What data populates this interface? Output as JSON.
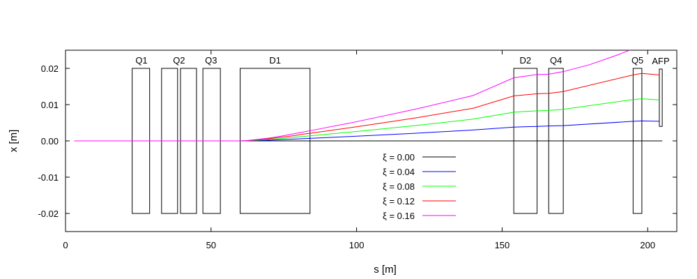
{
  "chart_data": {
    "type": "line",
    "xlabel": "s [m]",
    "ylabel": "x [m]",
    "xlim": [
      0,
      210
    ],
    "ylim": [
      -0.025,
      0.025
    ],
    "xticks": [
      0,
      50,
      100,
      150,
      200
    ],
    "xtick_labels": [
      "0",
      "50",
      "100",
      "150",
      "200"
    ],
    "yticks": [
      -0.02,
      -0.01,
      0.0,
      0.01,
      0.02
    ],
    "ytick_labels": [
      "-0.02",
      "-0.01",
      "0.00",
      "0.01",
      "0.02"
    ],
    "grid": false,
    "legend_position": "bottom-center",
    "elements": [
      {
        "name": "Q1",
        "s_start": 22.9,
        "s_end": 28.9,
        "x_min": -0.02,
        "x_max": 0.02,
        "label_s": 26.1
      },
      {
        "name": "",
        "s_start": 33.0,
        "s_end": 38.5,
        "x_min": -0.02,
        "x_max": 0.02,
        "label_s": 35.7
      },
      {
        "name": "Q2",
        "s_start": 39.5,
        "s_end": 45.0,
        "x_min": -0.02,
        "x_max": 0.02,
        "label_s": 39.0
      },
      {
        "name": "Q3",
        "s_start": 47.2,
        "s_end": 53.2,
        "x_min": -0.02,
        "x_max": 0.02,
        "label_s": 50.0
      },
      {
        "name": "D1",
        "s_start": 60.0,
        "s_end": 84.0,
        "x_min": -0.02,
        "x_max": 0.02,
        "label_s": 72.0
      },
      {
        "name": "D2",
        "s_start": 154.0,
        "s_end": 162.0,
        "x_min": -0.02,
        "x_max": 0.02,
        "label_s": 158.0
      },
      {
        "name": "Q4",
        "s_start": 166.0,
        "s_end": 171.0,
        "x_min": -0.02,
        "x_max": 0.02,
        "label_s": 168.5
      },
      {
        "name": "Q5",
        "s_start": 195.0,
        "s_end": 198.0,
        "x_min": -0.02,
        "x_max": 0.02,
        "label_s": 196.5
      },
      {
        "name": "AFP",
        "s_start": 204.0,
        "s_end": 205.0,
        "x_min": 0.004,
        "x_max": 0.0198,
        "label_s": 204.5
      }
    ],
    "baseline": {
      "s_start": 3,
      "s_end": 205,
      "x": 0.0
    },
    "series": [
      {
        "name": "ξ = 0.00",
        "color": "#000000",
        "x": [
          3,
          205
        ],
        "y": [
          0.0,
          0.0
        ]
      },
      {
        "name": "ξ = 0.04",
        "color": "#0000ff",
        "x": [
          3,
          60,
          62,
          66,
          70,
          74,
          78,
          82,
          84,
          100,
          120,
          140,
          154,
          162,
          166,
          171,
          195,
          198,
          204
        ],
        "y": [
          0.0,
          0.0,
          2e-05,
          0.0001,
          0.0002,
          0.00033,
          0.00048,
          0.00063,
          0.0007,
          0.0013,
          0.0021,
          0.003,
          0.0038,
          0.004,
          0.0041,
          0.0042,
          0.0054,
          0.0055,
          0.0054
        ]
      },
      {
        "name": "ξ = 0.08",
        "color": "#00ff00",
        "x": [
          3,
          60,
          62,
          66,
          70,
          74,
          78,
          82,
          84,
          100,
          120,
          140,
          154,
          162,
          166,
          171,
          195,
          198,
          204
        ],
        "y": [
          0.0,
          0.0,
          4e-05,
          0.0002,
          0.0004,
          0.00066,
          0.00096,
          0.00126,
          0.0014,
          0.0026,
          0.0042,
          0.006,
          0.0079,
          0.0083,
          0.0084,
          0.0087,
          0.0114,
          0.0116,
          0.0113
        ]
      },
      {
        "name": "ξ = 0.12",
        "color": "#ff0000",
        "x": [
          3,
          60,
          62,
          66,
          70,
          74,
          78,
          82,
          84,
          100,
          120,
          140,
          154,
          162,
          166,
          171,
          195,
          198,
          204
        ],
        "y": [
          0.0,
          0.0,
          6e-05,
          0.0003,
          0.0006,
          0.001,
          0.0014,
          0.0019,
          0.0021,
          0.0039,
          0.0063,
          0.009,
          0.0124,
          0.013,
          0.0131,
          0.0136,
          0.0182,
          0.0186,
          0.0182
        ]
      },
      {
        "name": "ξ = 0.16",
        "color": "#ff00ff",
        "x": [
          3,
          60,
          62,
          66,
          70,
          74,
          78,
          82,
          84,
          100,
          120,
          140,
          154,
          162,
          166,
          171,
          180,
          190,
          197
        ],
        "y": [
          0.0,
          0.0,
          8e-05,
          0.0004,
          0.0008,
          0.0013,
          0.0019,
          0.0025,
          0.0028,
          0.0053,
          0.0087,
          0.0125,
          0.0174,
          0.0183,
          0.0184,
          0.0191,
          0.021,
          0.0238,
          0.026
        ]
      }
    ]
  }
}
